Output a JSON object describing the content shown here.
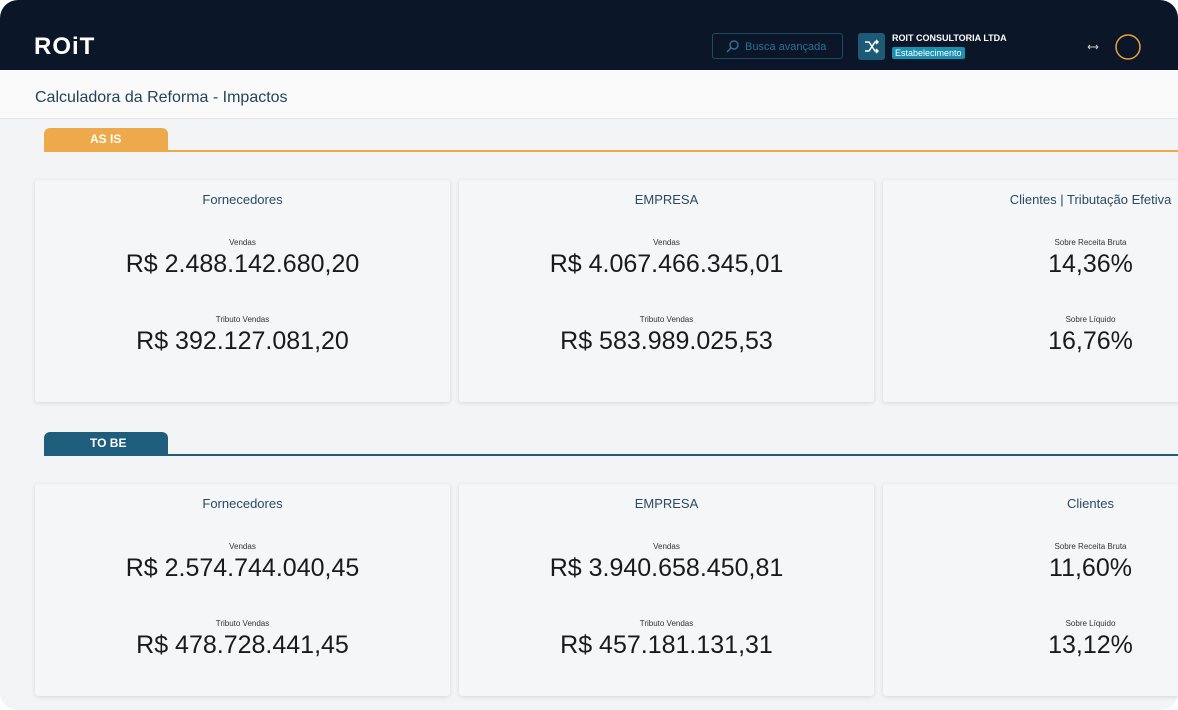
{
  "header": {
    "logo": "ROiT",
    "search_placeholder": "Busca avançada",
    "company": "ROIT CONSULTORIA LTDA",
    "company_badge": "Estabelecimento"
  },
  "page_title": "Calculadora da Reforma - Impactos",
  "sections": [
    {
      "tab": "AS IS",
      "cards": [
        {
          "title": "Fornecedores",
          "metrics": [
            {
              "label": "Vendas",
              "value": "R$ 2.488.142.680,20"
            },
            {
              "label": "Tributo Vendas",
              "value": "R$ 392.127.081,20"
            }
          ]
        },
        {
          "title": "EMPRESA",
          "metrics": [
            {
              "label": "Vendas",
              "value": "R$ 4.067.466.345,01"
            },
            {
              "label": "Tributo Vendas",
              "value": "R$ 583.989.025,53"
            }
          ]
        },
        {
          "title": "Clientes | Tributação Efetiva",
          "metrics": [
            {
              "label": "Sobre Receita Bruta",
              "value": "14,36%"
            },
            {
              "label": "Sobre Líquido",
              "value": "16,76%"
            }
          ]
        }
      ]
    },
    {
      "tab": "TO BE",
      "cards": [
        {
          "title": "Fornecedores",
          "metrics": [
            {
              "label": "Vendas",
              "value": "R$ 2.574.744.040,45"
            },
            {
              "label": "Tributo Vendas",
              "value": "R$ 478.728.441,45"
            }
          ]
        },
        {
          "title": "EMPRESA",
          "metrics": [
            {
              "label": "Vendas",
              "value": "R$ 3.940.658.450,81"
            },
            {
              "label": "Tributo Vendas",
              "value": "R$ 457.181.131,31"
            }
          ]
        },
        {
          "title": "Clientes",
          "metrics": [
            {
              "label": "Sobre Receita Bruta",
              "value": "11,60%"
            },
            {
              "label": "Sobre Líquido",
              "value": "13,12%"
            }
          ]
        }
      ]
    }
  ]
}
